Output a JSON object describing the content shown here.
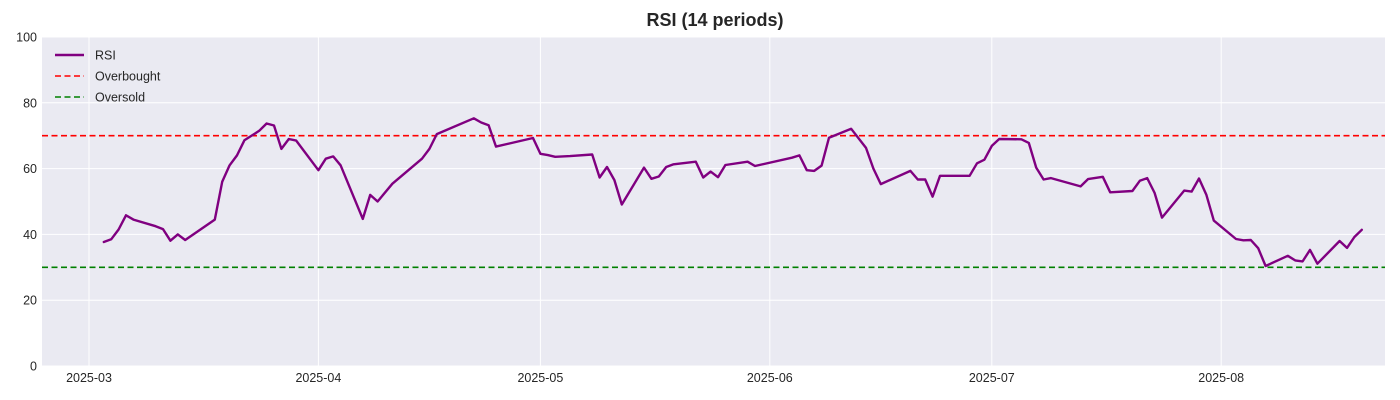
{
  "chart_data": {
    "type": "line",
    "title": "RSI (14 periods)",
    "xlabel": "",
    "ylabel": "",
    "ylim": [
      0,
      100
    ],
    "yticks": [
      0,
      20,
      40,
      60,
      80,
      100
    ],
    "xlim": [
      "2025-02-24",
      "2025-08-20"
    ],
    "xticks": [
      "2025-03-01",
      "2025-04-01",
      "2025-05-01",
      "2025-06-01",
      "2025-07-01",
      "2025-08-01"
    ],
    "xtick_labels": [
      "2025-03",
      "2025-04",
      "2025-05",
      "2025-06",
      "2025-07",
      "2025-08"
    ],
    "grid": true,
    "legend_position": "top-left",
    "series": [
      {
        "name": "RSI",
        "color": "#800080",
        "style": "solid",
        "points": [
          [
            "2025-03-03",
            37.7
          ],
          [
            "2025-03-04",
            38.5
          ],
          [
            "2025-03-05",
            41.5
          ],
          [
            "2025-03-06",
            45.8
          ],
          [
            "2025-03-07",
            44.5
          ],
          [
            "2025-03-10",
            42.5
          ],
          [
            "2025-03-11",
            41.6
          ],
          [
            "2025-03-12",
            38.1
          ],
          [
            "2025-03-13",
            40.0
          ],
          [
            "2025-03-14",
            38.3
          ],
          [
            "2025-03-18",
            44.5
          ],
          [
            "2025-03-19",
            56.0
          ],
          [
            "2025-03-20",
            61.0
          ],
          [
            "2025-03-21",
            64.0
          ],
          [
            "2025-03-22",
            68.6
          ],
          [
            "2025-03-24",
            71.5
          ],
          [
            "2025-03-25",
            73.7
          ],
          [
            "2025-03-26",
            73.1
          ],
          [
            "2025-03-27",
            66.0
          ],
          [
            "2025-03-28",
            69.0
          ],
          [
            "2025-03-29",
            68.5
          ],
          [
            "2025-04-01",
            59.5
          ],
          [
            "2025-04-02",
            63.0
          ],
          [
            "2025-04-03",
            63.7
          ],
          [
            "2025-04-04",
            61.0
          ],
          [
            "2025-04-07",
            44.7
          ],
          [
            "2025-04-08",
            52.0
          ],
          [
            "2025-04-09",
            50.0
          ],
          [
            "2025-04-11",
            55.4
          ],
          [
            "2025-04-15",
            63.0
          ],
          [
            "2025-04-16",
            66.0
          ],
          [
            "2025-04-17",
            70.5
          ],
          [
            "2025-04-22",
            75.3
          ],
          [
            "2025-04-23",
            74.0
          ],
          [
            "2025-04-24",
            73.2
          ],
          [
            "2025-04-25",
            66.7
          ],
          [
            "2025-04-30",
            69.3
          ],
          [
            "2025-05-01",
            64.5
          ],
          [
            "2025-05-02",
            64.1
          ],
          [
            "2025-05-03",
            63.6
          ],
          [
            "2025-05-05",
            63.8
          ],
          [
            "2025-05-08",
            64.3
          ],
          [
            "2025-05-09",
            57.3
          ],
          [
            "2025-05-10",
            60.5
          ],
          [
            "2025-05-11",
            56.5
          ],
          [
            "2025-05-12",
            49.1
          ],
          [
            "2025-05-15",
            60.3
          ],
          [
            "2025-05-16",
            56.9
          ],
          [
            "2025-05-17",
            57.6
          ],
          [
            "2025-05-18",
            60.5
          ],
          [
            "2025-05-19",
            61.3
          ],
          [
            "2025-05-22",
            62.1
          ],
          [
            "2025-05-23",
            57.3
          ],
          [
            "2025-05-24",
            59.1
          ],
          [
            "2025-05-25",
            57.4
          ],
          [
            "2025-05-26",
            61.1
          ],
          [
            "2025-05-29",
            62.1
          ],
          [
            "2025-05-30",
            60.8
          ],
          [
            "2025-06-04",
            63.3
          ],
          [
            "2025-06-05",
            64.0
          ],
          [
            "2025-06-06",
            59.5
          ],
          [
            "2025-06-07",
            59.3
          ],
          [
            "2025-06-08",
            60.9
          ],
          [
            "2025-06-09",
            69.4
          ],
          [
            "2025-06-12",
            72.1
          ],
          [
            "2025-06-14",
            66.3
          ],
          [
            "2025-06-15",
            60.0
          ],
          [
            "2025-06-16",
            55.3
          ],
          [
            "2025-06-20",
            59.3
          ],
          [
            "2025-06-21",
            56.7
          ],
          [
            "2025-06-22",
            56.7
          ],
          [
            "2025-06-23",
            51.5
          ],
          [
            "2025-06-24",
            57.8
          ],
          [
            "2025-06-28",
            57.8
          ],
          [
            "2025-06-29",
            61.6
          ],
          [
            "2025-06-30",
            62.7
          ],
          [
            "2025-07-01",
            66.9
          ],
          [
            "2025-07-02",
            69.0
          ],
          [
            "2025-07-05",
            68.9
          ],
          [
            "2025-07-06",
            67.8
          ],
          [
            "2025-07-07",
            60.3
          ],
          [
            "2025-07-08",
            56.7
          ],
          [
            "2025-07-09",
            57.1
          ],
          [
            "2025-07-13",
            54.6
          ],
          [
            "2025-07-14",
            56.8
          ],
          [
            "2025-07-16",
            57.5
          ],
          [
            "2025-07-17",
            52.8
          ],
          [
            "2025-07-20",
            53.2
          ],
          [
            "2025-07-21",
            56.3
          ],
          [
            "2025-07-22",
            57.1
          ],
          [
            "2025-07-23",
            52.6
          ],
          [
            "2025-07-24",
            45.1
          ],
          [
            "2025-07-27",
            53.3
          ],
          [
            "2025-07-28",
            53.0
          ],
          [
            "2025-07-29",
            57.0
          ],
          [
            "2025-07-30",
            52.0
          ],
          [
            "2025-07-31",
            44.2
          ],
          [
            "2025-08-03",
            38.6
          ],
          [
            "2025-08-04",
            38.2
          ],
          [
            "2025-08-05",
            38.3
          ],
          [
            "2025-08-06",
            35.8
          ],
          [
            "2025-08-07",
            30.4
          ],
          [
            "2025-08-10",
            33.5
          ],
          [
            "2025-08-11",
            32.1
          ],
          [
            "2025-08-12",
            31.8
          ],
          [
            "2025-08-13",
            35.3
          ],
          [
            "2025-08-14",
            31.1
          ],
          [
            "2025-08-17",
            38.0
          ],
          [
            "2025-08-18",
            35.9
          ],
          [
            "2025-08-19",
            39.2
          ],
          [
            "2025-08-20",
            41.4
          ]
        ]
      },
      {
        "name": "Overbought",
        "color": "#ff0000",
        "style": "dashed",
        "value": 70
      },
      {
        "name": "Oversold",
        "color": "#008000",
        "style": "dashed",
        "value": 30
      }
    ]
  }
}
